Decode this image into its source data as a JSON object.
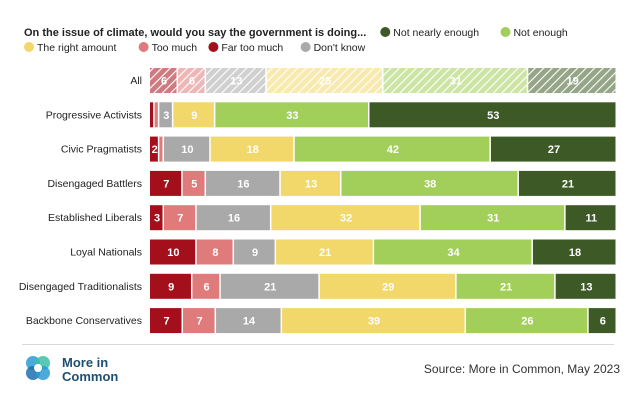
{
  "chart_data": {
    "type": "bar",
    "stacked": true,
    "orientation": "horizontal",
    "title": "On the issue of climate, would you say the government is doing...",
    "categories": [
      "All",
      "Progressive Activists",
      "Civic Pragmatists",
      "Disengaged Battlers",
      "Established Liberals",
      "Loyal Nationals",
      "Disengaged Traditionalists",
      "Backbone Conservatives"
    ],
    "series": [
      {
        "name": "Far too much",
        "color": "#a30f1a",
        "values": [
          6,
          1,
          2,
          7,
          3,
          10,
          9,
          7
        ],
        "labels": [
          "6",
          "",
          "2",
          "7",
          "3",
          "10",
          "9",
          "7"
        ]
      },
      {
        "name": "Too much",
        "color": "#e07b7b",
        "values": [
          6,
          1,
          1,
          5,
          7,
          8,
          6,
          7
        ],
        "labels": [
          "6",
          "",
          "",
          "5",
          "7",
          "8",
          "6",
          "7"
        ]
      },
      {
        "name": "Don't know",
        "color": "#a9a9a9",
        "values": [
          13,
          3,
          10,
          16,
          16,
          9,
          21,
          14
        ],
        "labels": [
          "13",
          "3",
          "10",
          "16",
          "16",
          "9",
          "21",
          "14"
        ]
      },
      {
        "name": "The right amount",
        "color": "#f2d76b",
        "values": [
          25,
          9,
          18,
          13,
          32,
          21,
          29,
          39
        ],
        "labels": [
          "25",
          "9",
          "18",
          "13",
          "32",
          "21",
          "29",
          "39"
        ]
      },
      {
        "name": "Not enough",
        "color": "#a2cf5a",
        "values": [
          31,
          33,
          42,
          38,
          31,
          34,
          21,
          26
        ],
        "labels": [
          "31",
          "33",
          "42",
          "38",
          "31",
          "34",
          "21",
          "26"
        ]
      },
      {
        "name": "Not nearly enough",
        "color": "#3d5a26",
        "values": [
          19,
          53,
          27,
          21,
          11,
          18,
          13,
          6
        ],
        "labels": [
          "19",
          "53",
          "27",
          "21",
          "11",
          "18",
          "13",
          "6"
        ]
      }
    ],
    "hatched_categories": [
      "All"
    ],
    "legend_order": [
      "Not nearly enough",
      "Not enough",
      "The right amount",
      "Too much",
      "Far too much",
      "Don't know"
    ],
    "legend_position": "top"
  },
  "brand": {
    "line1": "More in",
    "line2": "Common"
  },
  "source_text": "Source: More in Common, May 2023"
}
